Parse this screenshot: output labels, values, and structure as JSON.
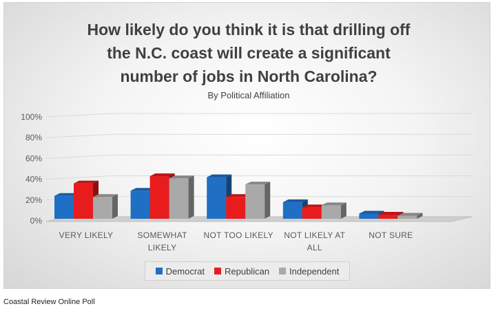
{
  "chart_data": {
    "type": "bar",
    "title_lines": [
      "How likely do you think it is that drilling off",
      "the N.C. coast will create a significant",
      "number of jobs in North Carolina?"
    ],
    "subtitle": "By Political Affiliation",
    "categories": [
      [
        "VERY LIKELY"
      ],
      [
        "SOMEWHAT",
        "LIKELY"
      ],
      [
        "NOT TOO LIKELY"
      ],
      [
        "NOT LIKELY AT",
        "ALL"
      ],
      [
        "NOT SURE"
      ]
    ],
    "series": [
      {
        "name": "Democrat",
        "color": "#1f6fc5",
        "values": [
          22,
          27,
          40,
          16,
          5
        ]
      },
      {
        "name": "Republican",
        "color": "#e81c1c",
        "values": [
          34,
          41,
          21,
          11,
          4
        ]
      },
      {
        "name": "Independent",
        "color": "#a9a9a9",
        "values": [
          21,
          39,
          33,
          13,
          3
        ]
      }
    ],
    "y_ticks": [
      "0%",
      "20%",
      "40%",
      "60%",
      "80%",
      "100%"
    ],
    "ylim": [
      0,
      100
    ],
    "grid": true,
    "legend_position": "bottom"
  },
  "footer": "Coastal Review Online Poll"
}
